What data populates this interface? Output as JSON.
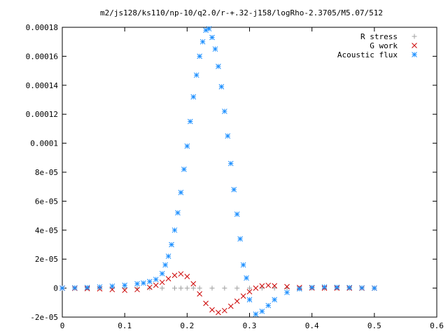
{
  "chart_data": {
    "type": "scatter",
    "title": "m2/js128/ks110/np-10/q2.0/r-+.32-j158/logRho-2.3705/M5.07/512",
    "xlabel": "",
    "ylabel": "",
    "xlim": [
      0,
      0.6
    ],
    "ylim": [
      -2e-05,
      0.00018
    ],
    "x_ticks": [
      {
        "v": 0,
        "label": "0"
      },
      {
        "v": 0.1,
        "label": "0.1"
      },
      {
        "v": 0.2,
        "label": "0.2"
      },
      {
        "v": 0.3,
        "label": "0.3"
      },
      {
        "v": 0.4,
        "label": "0.4"
      },
      {
        "v": 0.5,
        "label": "0.5"
      },
      {
        "v": 0.6,
        "label": "0.6"
      }
    ],
    "y_ticks": [
      {
        "v": -2e-05,
        "label": "-2e-05"
      },
      {
        "v": 0,
        "label": "0"
      },
      {
        "v": 2e-05,
        "label": "2e-05"
      },
      {
        "v": 4e-05,
        "label": "4e-05"
      },
      {
        "v": 6e-05,
        "label": "6e-05"
      },
      {
        "v": 8e-05,
        "label": "8e-05"
      },
      {
        "v": 0.0001,
        "label": "0.0001"
      },
      {
        "v": 0.00012,
        "label": "0.00012"
      },
      {
        "v": 0.00014,
        "label": "0.00014"
      },
      {
        "v": 0.00016,
        "label": "0.00016"
      },
      {
        "v": 0.00018,
        "label": "0.00018"
      }
    ],
    "grid": false,
    "legend_position": "top-right",
    "series": [
      {
        "name": "R stress",
        "marker": "plus",
        "color": "#a0a0a0",
        "x": [
          0,
          0.02,
          0.04,
          0.06,
          0.08,
          0.1,
          0.12,
          0.14,
          0.16,
          0.18,
          0.19,
          0.2,
          0.21,
          0.22,
          0.24,
          0.26,
          0.28,
          0.3,
          0.32,
          0.34,
          0.36,
          0.38,
          0.4,
          0.42,
          0.44,
          0.46,
          0.48,
          0.5
        ],
        "y": [
          0,
          0,
          0,
          0,
          0,
          0,
          0,
          0,
          0,
          0,
          0,
          0,
          0,
          0,
          0,
          0,
          0,
          0,
          0,
          0,
          0,
          0,
          0,
          0,
          0,
          0,
          0,
          0
        ]
      },
      {
        "name": "G work",
        "marker": "cross",
        "color": "#cc0000",
        "x": [
          0,
          0.02,
          0.04,
          0.06,
          0.08,
          0.1,
          0.12,
          0.14,
          0.15,
          0.16,
          0.17,
          0.18,
          0.19,
          0.2,
          0.21,
          0.22,
          0.23,
          0.24,
          0.25,
          0.26,
          0.27,
          0.28,
          0.29,
          0.3,
          0.31,
          0.32,
          0.33,
          0.34,
          0.36,
          0.38,
          0.4,
          0.42,
          0.44,
          0.46,
          0.48,
          0.5
        ],
        "y": [
          0,
          -1e-07,
          -3e-07,
          -5e-07,
          -1e-06,
          -1.5e-06,
          -1e-06,
          5e-07,
          2e-06,
          4e-06,
          6.5e-06,
          8.8e-06,
          9.8e-06,
          8e-06,
          3e-06,
          -4e-06,
          -1.05e-05,
          -1.5e-05,
          -1.68e-05,
          -1.55e-05,
          -1.25e-05,
          -9e-06,
          -5.5e-06,
          -2.5e-06,
          0,
          1.5e-06,
          1.9e-06,
          1.6e-06,
          1e-06,
          4e-07,
          1e-07,
          0,
          0,
          0,
          0,
          0
        ]
      },
      {
        "name": "Acoustic flux",
        "marker": "star",
        "color": "#1e90ff",
        "x": [
          0,
          0.02,
          0.04,
          0.06,
          0.08,
          0.1,
          0.12,
          0.13,
          0.14,
          0.15,
          0.16,
          0.165,
          0.17,
          0.175,
          0.18,
          0.185,
          0.19,
          0.195,
          0.2,
          0.205,
          0.21,
          0.215,
          0.22,
          0.225,
          0.23,
          0.235,
          0.24,
          0.245,
          0.25,
          0.255,
          0.26,
          0.265,
          0.27,
          0.275,
          0.28,
          0.285,
          0.29,
          0.295,
          0.3,
          0.31,
          0.32,
          0.33,
          0.34,
          0.36,
          0.38,
          0.4,
          0.42,
          0.44,
          0.46,
          0.48,
          0.5
        ],
        "y": [
          0,
          2e-07,
          4e-07,
          8e-07,
          1.3e-06,
          2e-06,
          3e-06,
          3.5e-06,
          4.5e-06,
          6e-06,
          1e-05,
          1.6e-05,
          2.2e-05,
          3e-05,
          4e-05,
          5.2e-05,
          6.6e-05,
          8.2e-05,
          9.8e-05,
          0.000115,
          0.000132,
          0.000147,
          0.00016,
          0.00017,
          0.000178,
          0.000179,
          0.000173,
          0.000165,
          0.000153,
          0.000139,
          0.000122,
          0.000105,
          8.6e-05,
          6.8e-05,
          5.1e-05,
          3.4e-05,
          1.6e-05,
          7e-06,
          -8e-06,
          -1.8e-05,
          -1.6e-05,
          -1.2e-05,
          -8e-06,
          -3e-06,
          -5e-07,
          5e-07,
          8e-07,
          6e-07,
          4e-07,
          2e-07,
          0
        ]
      }
    ]
  }
}
